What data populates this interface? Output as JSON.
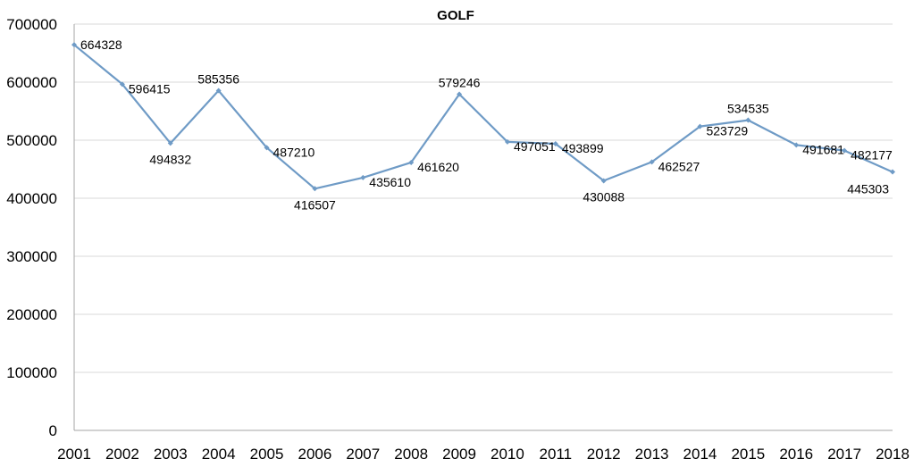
{
  "chart_data": {
    "type": "line",
    "title": "GOLF",
    "xlabel": "",
    "ylabel": "",
    "categories": [
      "2001",
      "2002",
      "2003",
      "2004",
      "2005",
      "2006",
      "2007",
      "2008",
      "2009",
      "2010",
      "2011",
      "2012",
      "2013",
      "2014",
      "2015",
      "2016",
      "2017",
      "2018"
    ],
    "series": [
      {
        "values": [
          664328,
          596415,
          494832,
          585356,
          487210,
          416507,
          435610,
          461620,
          579246,
          497051,
          493899,
          430088,
          462527,
          523729,
          534535,
          491681,
          482177,
          445303
        ],
        "color": "#6f9bc6"
      }
    ],
    "ylim": [
      0,
      700000
    ],
    "yticks": [
      "0",
      "100000",
      "200000",
      "300000",
      "400000",
      "500000",
      "600000",
      "700000"
    ],
    "grid": true,
    "legend": "none",
    "data_labels": true
  }
}
